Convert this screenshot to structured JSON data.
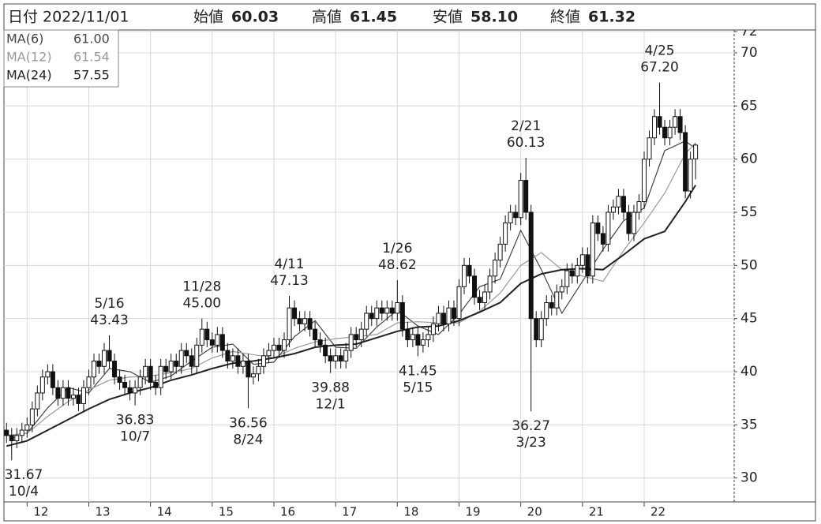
{
  "header": {
    "date_label": "日付",
    "date": "2022/11/01",
    "fields": [
      {
        "label": "始値",
        "value": "60.03"
      },
      {
        "label": "高値",
        "value": "61.45"
      },
      {
        "label": "安値",
        "value": "58.10"
      },
      {
        "label": "終値",
        "value": "61.32"
      }
    ]
  },
  "chart_data": {
    "type": "candlestick",
    "open": [
      34.5,
      34,
      33.5,
      34,
      34.5,
      35,
      36.5,
      38,
      39.5,
      40,
      38.5,
      37.5,
      38.5,
      37.5,
      37.8,
      37,
      38.5,
      39.5,
      41,
      40.5,
      42,
      41,
      39.5,
      39,
      38.5,
      38,
      38.5,
      39.5,
      40.5,
      39,
      38.5,
      40.5,
      40,
      41,
      40.5,
      42,
      41.5,
      40.5,
      42.5,
      44,
      43,
      42.5,
      43.5,
      42,
      41,
      41.5,
      40.5,
      41,
      39.5,
      39.8,
      40.5,
      41.5,
      42,
      42.5,
      42,
      43,
      46,
      45,
      44.5,
      45,
      44,
      43,
      42.5,
      41.5,
      41,
      41.5,
      41,
      42,
      43.5,
      43,
      44,
      45.5,
      45,
      46,
      45.5,
      46,
      45.5,
      46.5,
      44,
      43,
      43.5,
      42.5,
      43,
      43.5,
      44.5,
      45.5,
      44.5,
      46,
      45,
      48,
      50,
      49,
      47,
      46.5,
      47.5,
      49,
      50.5,
      52,
      54,
      55,
      54.5,
      58,
      55,
      45,
      43,
      45,
      46.5,
      46,
      47.5,
      48,
      49.5,
      49,
      50,
      51,
      49,
      54,
      53,
      52,
      55,
      55.5,
      56.5,
      55,
      53,
      55,
      56,
      60,
      62,
      64,
      63,
      62,
      63,
      64,
      62.5,
      57,
      60.03
    ],
    "high": [
      35.2,
      34.7,
      34.7,
      35.2,
      35.7,
      37.2,
      38.7,
      40.2,
      40.7,
      40.7,
      39.2,
      39.2,
      39.2,
      38.5,
      38.5,
      39.2,
      40.2,
      41.7,
      41.7,
      42.7,
      43.43,
      41.7,
      40.2,
      39.7,
      39.2,
      39.2,
      40.2,
      41.2,
      41.2,
      39.7,
      41.2,
      41.2,
      41.7,
      41.7,
      42.7,
      42.7,
      42.2,
      43.2,
      45.0,
      44.7,
      43.7,
      44.2,
      44.2,
      42.7,
      42.2,
      42.2,
      41.7,
      41.7,
      40.5,
      41.2,
      42.2,
      42.7,
      43.2,
      43.2,
      43.7,
      47.13,
      46.7,
      45.7,
      45.7,
      45.7,
      44.7,
      43.7,
      43.2,
      42.2,
      42.2,
      42.2,
      42.7,
      44.2,
      44.2,
      44.7,
      46.2,
      46.2,
      46.7,
      46.7,
      46.7,
      46.7,
      48.62,
      47.2,
      44.7,
      44.2,
      44.2,
      43.7,
      44.2,
      45.2,
      46.2,
      46.2,
      46.7,
      46.7,
      48.7,
      50.7,
      50.7,
      49.7,
      47.7,
      48.2,
      49.7,
      51.2,
      52.7,
      54.7,
      55.7,
      55.7,
      58.7,
      60.13,
      55.7,
      45.7,
      45.7,
      47.2,
      47.2,
      48.2,
      48.7,
      50.2,
      50.2,
      50.7,
      51.7,
      51.7,
      54.7,
      54.7,
      53.7,
      55.7,
      56.2,
      57.2,
      57.2,
      55.7,
      55.7,
      56.7,
      60.7,
      62.7,
      64.7,
      67.2,
      63.7,
      63.7,
      64.7,
      64.7,
      63.2,
      60.7,
      61.45
    ],
    "low": [
      33.3,
      31.67,
      32.8,
      33.3,
      33.8,
      34.3,
      35.8,
      37.3,
      38.8,
      37.8,
      36.8,
      36.8,
      36.8,
      36.8,
      36.3,
      36.3,
      37.8,
      38.8,
      39.8,
      39.8,
      40.3,
      38.8,
      38.3,
      37.8,
      37.3,
      36.83,
      37.8,
      38.8,
      38.3,
      37.8,
      37.8,
      39.3,
      39.3,
      39.8,
      39.8,
      40.8,
      39.8,
      39.8,
      41.8,
      42.3,
      41.8,
      41.8,
      41.3,
      40.3,
      40.3,
      39.8,
      39.8,
      36.56,
      38.8,
      39.1,
      39.8,
      40.8,
      41.3,
      41.3,
      41.3,
      42.3,
      44.3,
      43.8,
      43.8,
      43.3,
      42.3,
      41.8,
      40.8,
      39.88,
      40.3,
      40.3,
      40.3,
      41.3,
      42.3,
      42.3,
      43.3,
      44.3,
      44.3,
      44.8,
      44.8,
      44.8,
      44.8,
      43.3,
      42.3,
      42.3,
      41.45,
      41.8,
      42.3,
      42.8,
      43.8,
      43.8,
      43.8,
      44.3,
      44.3,
      47.3,
      48.3,
      46.3,
      45.8,
      45.8,
      46.8,
      48.3,
      49.8,
      51.3,
      53.3,
      53.8,
      53.8,
      54.3,
      36.27,
      42.3,
      42.3,
      44.3,
      45.3,
      45.3,
      46.8,
      47.3,
      48.3,
      48.3,
      49.3,
      48.3,
      48.3,
      52.3,
      51.3,
      51.3,
      54.3,
      54.8,
      54.3,
      52.3,
      52.3,
      54.3,
      55.3,
      59.3,
      61.3,
      62.3,
      61.3,
      61.3,
      62.3,
      61.8,
      56.3,
      56.3,
      58.1
    ],
    "close": [
      34,
      33.5,
      34,
      34.5,
      35,
      36.5,
      38,
      39.5,
      40,
      38.5,
      37.5,
      38.5,
      37.5,
      37.8,
      37,
      38.5,
      39.5,
      41,
      40.5,
      42,
      41,
      39.5,
      39,
      38.5,
      38,
      38.5,
      39.5,
      40.5,
      39,
      38.5,
      40.5,
      40,
      41,
      40.5,
      42,
      41.5,
      40.5,
      42.5,
      44,
      43,
      42.5,
      43.5,
      42,
      41,
      41.5,
      40.5,
      41,
      39.5,
      39.8,
      40.5,
      41.5,
      42,
      42.5,
      42,
      43,
      46,
      45,
      44.5,
      45,
      44,
      43,
      42.5,
      41.5,
      41,
      41.5,
      41,
      42,
      43.5,
      43,
      44,
      45.5,
      45,
      46,
      45.5,
      46,
      45.5,
      46.5,
      44,
      43,
      43.5,
      42.5,
      43,
      43.5,
      44.5,
      45.5,
      44.5,
      46,
      45,
      48,
      50,
      49,
      47,
      46.5,
      47.5,
      49,
      50.5,
      52,
      54,
      55,
      54.5,
      58,
      55,
      45,
      43,
      45,
      46.5,
      46,
      47.5,
      48,
      49.5,
      49,
      50,
      51,
      49,
      54,
      53,
      52,
      55,
      55.5,
      56.5,
      55,
      53,
      55,
      56,
      60,
      62,
      64,
      63,
      62,
      63,
      64,
      62.5,
      57,
      60,
      61.32
    ],
    "series": [
      {
        "name": "MA(6)",
        "last": "61.00",
        "color": "#444444",
        "x": [
          0,
          4,
          8,
          12,
          16,
          20,
          24,
          28,
          32,
          36,
          40,
          44,
          48,
          52,
          56,
          60,
          64,
          68,
          72,
          76,
          80,
          84,
          88,
          92,
          96,
          100,
          104,
          108,
          112,
          116,
          120,
          124,
          128,
          132,
          134
        ],
        "values": [
          34,
          34.2,
          36.6,
          38.5,
          38,
          40.3,
          40,
          39,
          39.6,
          41,
          42.3,
          42.6,
          40.7,
          40.9,
          43.3,
          44.8,
          42.3,
          42.2,
          44.2,
          45.8,
          44.3,
          43.5,
          45.4,
          48,
          48.7,
          53.3,
          49.6,
          45.5,
          48.5,
          51.5,
          54.2,
          55.4,
          60.8,
          61.7,
          61.0
        ]
      },
      {
        "name": "MA(12)",
        "last": "61.54",
        "color": "#999999",
        "x": [
          0,
          4,
          8,
          12,
          16,
          20,
          24,
          28,
          32,
          36,
          40,
          44,
          48,
          52,
          56,
          60,
          64,
          68,
          72,
          76,
          80,
          84,
          88,
          92,
          96,
          100,
          104,
          108,
          112,
          116,
          120,
          124,
          128,
          132,
          134
        ],
        "values": [
          34,
          34.2,
          35.8,
          37.2,
          38.3,
          39.2,
          39.5,
          39.6,
          39.9,
          40.3,
          41.3,
          41.9,
          41.6,
          41.3,
          42.2,
          42.8,
          43.1,
          43.3,
          43.5,
          44.6,
          44.7,
          44.6,
          44.6,
          45.7,
          47.4,
          50,
          51.2,
          49.6,
          49,
          48.5,
          51.4,
          54,
          56.8,
          60.5,
          61.54
        ]
      },
      {
        "name": "MA(24)",
        "last": "57.55",
        "color": "#222222",
        "x": [
          0,
          4,
          8,
          12,
          16,
          20,
          24,
          28,
          32,
          36,
          40,
          44,
          48,
          52,
          56,
          60,
          64,
          68,
          72,
          76,
          80,
          84,
          88,
          92,
          96,
          100,
          104,
          108,
          112,
          116,
          120,
          124,
          128,
          132,
          134
        ],
        "values": [
          33,
          33.5,
          34.5,
          35.5,
          36.5,
          37.4,
          38,
          38.5,
          39.2,
          39.7,
          40.3,
          40.8,
          41,
          41.3,
          41.7,
          42.3,
          42.5,
          42.6,
          43.2,
          43.8,
          44.2,
          44.3,
          44.8,
          45.6,
          46.5,
          48.3,
          49.2,
          49.6,
          49.7,
          49.6,
          51,
          52.5,
          53.2,
          56,
          57.55
        ]
      }
    ],
    "annotations": [
      {
        "index": 1,
        "date": "10/4",
        "label": "31.67",
        "side": "below"
      },
      {
        "index": 20,
        "date": "5/16",
        "label": "43.43",
        "side": "above"
      },
      {
        "index": 25,
        "date": "10/7",
        "label": "36.83",
        "side": "below"
      },
      {
        "index": 38,
        "date": "11/28",
        "label": "45.00",
        "side": "above"
      },
      {
        "index": 47,
        "date": "8/24",
        "label": "36.56",
        "side": "below"
      },
      {
        "index": 55,
        "date": "4/11",
        "label": "47.13",
        "side": "above"
      },
      {
        "index": 63,
        "date": "12/1",
        "label": "39.88",
        "side": "below"
      },
      {
        "index": 76,
        "date": "1/26",
        "label": "48.62",
        "side": "above"
      },
      {
        "index": 80,
        "date": "5/15",
        "label": "41.45",
        "side": "below"
      },
      {
        "index": 101,
        "date": "2/21",
        "label": "60.13",
        "side": "above"
      },
      {
        "index": 102,
        "date": "3/23",
        "label": "36.27",
        "side": "below"
      },
      {
        "index": 127,
        "date": "4/25",
        "label": "67.20",
        "side": "above"
      }
    ],
    "xlim": [
      -0.5,
      141.5
    ],
    "xticks": [
      {
        "value": 4,
        "label": "12"
      },
      {
        "value": 16,
        "label": "13"
      },
      {
        "value": 28,
        "label": "14"
      },
      {
        "value": 40,
        "label": "15"
      },
      {
        "value": 52,
        "label": "16"
      },
      {
        "value": 64,
        "label": "17"
      },
      {
        "value": 76,
        "label": "18"
      },
      {
        "value": 88,
        "label": "19"
      },
      {
        "value": 100,
        "label": "20"
      },
      {
        "value": 112,
        "label": "21"
      },
      {
        "value": 124,
        "label": "22"
      }
    ],
    "ylim": [
      27.75,
      72.15
    ],
    "yticks": [
      30,
      35,
      40,
      45,
      50,
      55,
      60,
      65,
      70,
      72
    ],
    "grid": true,
    "up_color": "#ffffff",
    "down_color": "#111111"
  }
}
